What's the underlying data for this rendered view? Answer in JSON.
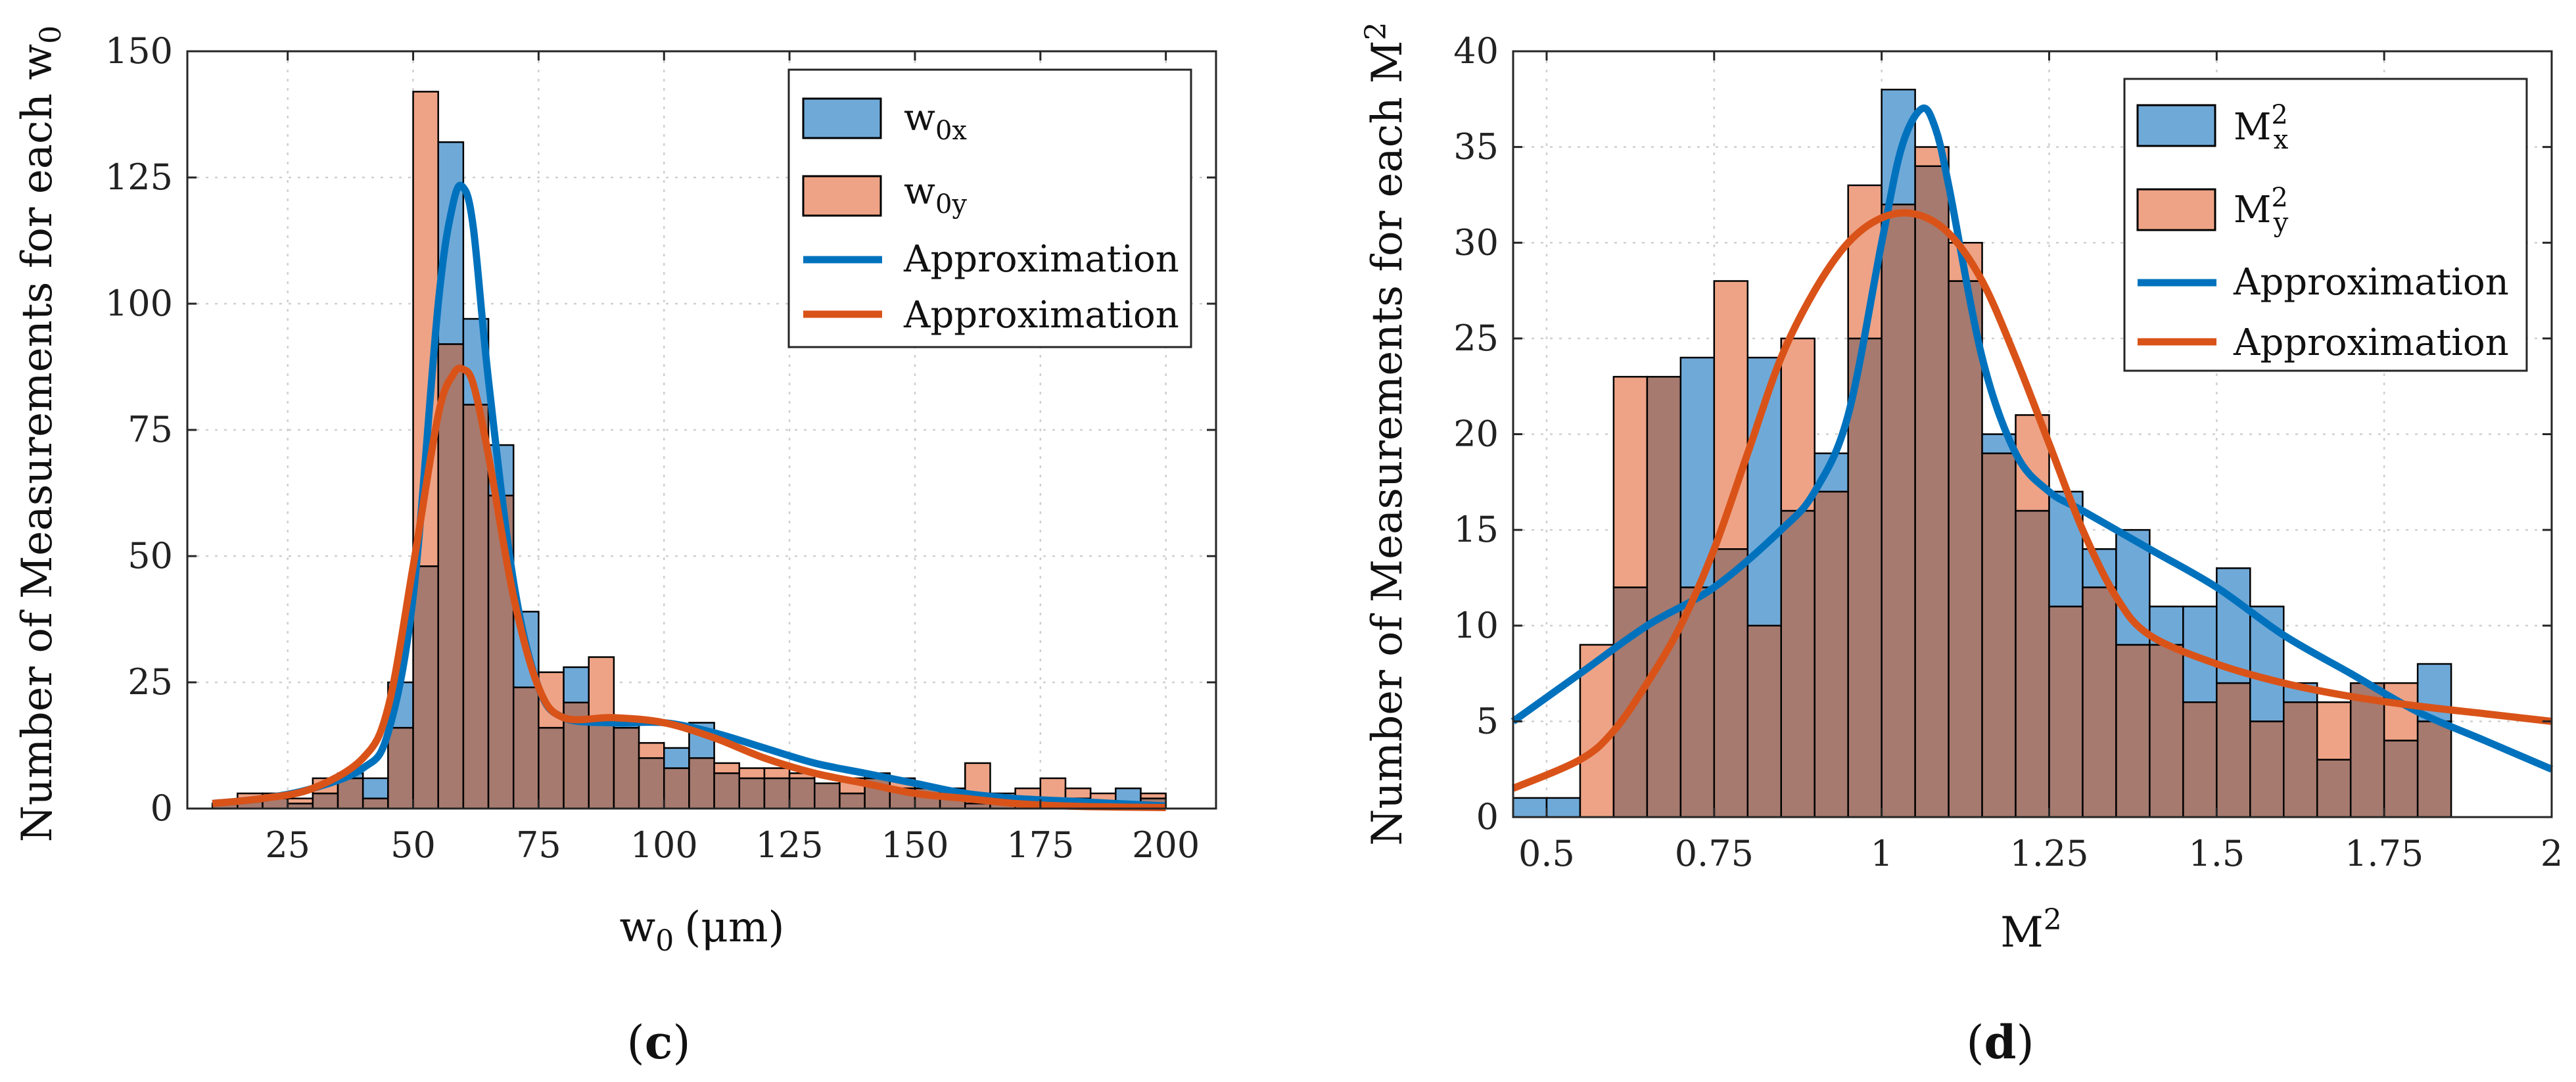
{
  "chart_data": [
    {
      "type": "histogram",
      "panel_label": "c",
      "title": "",
      "xlabel": "w0 (μm)",
      "xlabel_main": "w",
      "xlabel_sub": "0",
      "xlabel_unit": "(μm)",
      "ylabel": "Number of Measurements for each w0",
      "ylabel_main": "Number of Measurements for each w",
      "ylabel_sub": "0",
      "xlim": [
        5,
        210
      ],
      "ylim": [
        0,
        150
      ],
      "xticks": [
        25,
        50,
        75,
        100,
        125,
        150,
        175,
        200
      ],
      "yticks": [
        0,
        25,
        50,
        75,
        100,
        125,
        150
      ],
      "grid": true,
      "legend_position": "top-right",
      "bin_start": 10,
      "bin_width": 5,
      "series": [
        {
          "name": "w0x",
          "legend_main": "w",
          "legend_sub": "0x",
          "kind": "bar",
          "color": "#6FA9D8",
          "values": [
            1,
            2,
            2,
            1,
            3,
            7,
            6,
            25,
            48,
            132,
            97,
            72,
            39,
            16,
            28,
            18,
            17,
            10,
            12,
            17,
            7,
            6,
            6,
            6,
            5,
            3,
            6,
            4,
            4,
            4,
            1,
            2,
            2,
            2,
            2,
            1,
            4,
            2
          ]
        },
        {
          "name": "w0y",
          "legend_main": "w",
          "legend_sub": "0y",
          "kind": "bar",
          "color": "#EEA386",
          "values": [
            1,
            3,
            3,
            2,
            6,
            6,
            2,
            16,
            142,
            92,
            80,
            62,
            24,
            27,
            21,
            30,
            16,
            13,
            8,
            10,
            9,
            8,
            8,
            7,
            5,
            6,
            7,
            6,
            4,
            3,
            9,
            3,
            4,
            6,
            4,
            3,
            1,
            3
          ]
        },
        {
          "name": "Approximation",
          "legend_main": "Approximation",
          "kind": "line",
          "color": "#0072BD",
          "x": [
            10,
            20,
            30,
            40,
            45,
            50,
            55,
            58,
            60,
            62,
            65,
            70,
            75,
            80,
            90,
            100,
            110,
            120,
            130,
            140,
            150,
            160,
            170,
            180,
            190,
            200
          ],
          "y": [
            1,
            2,
            4,
            8,
            15,
            42,
            100,
            120,
            123,
            115,
            85,
            45,
            24,
            18,
            17,
            17,
            15,
            12,
            9,
            7,
            5,
            3,
            2,
            1.5,
            1,
            0.5
          ]
        },
        {
          "name": "Approximation",
          "legend_main": "Approximation",
          "kind": "line",
          "color": "#D95319",
          "x": [
            10,
            20,
            30,
            40,
            45,
            50,
            55,
            58,
            60,
            62,
            65,
            70,
            75,
            80,
            90,
            100,
            110,
            120,
            130,
            140,
            150,
            160,
            170,
            180,
            190,
            200
          ],
          "y": [
            1,
            2,
            4,
            10,
            20,
            48,
            78,
            86,
            87,
            84,
            70,
            42,
            24,
            18,
            18,
            17,
            14,
            10,
            7,
            5,
            3,
            2,
            1,
            0.5,
            0.3,
            0.2
          ]
        }
      ]
    },
    {
      "type": "histogram",
      "panel_label": "d",
      "title": "",
      "xlabel": "M2",
      "xlabel_main": "M",
      "xlabel_sup": "2",
      "ylabel": "Number of Measurements for each M2",
      "ylabel_main": "Number of Measurements for each M",
      "ylabel_sup": "2",
      "xlim": [
        0.45,
        2.0
      ],
      "ylim": [
        0,
        40
      ],
      "xticks": [
        0.5,
        0.75,
        1,
        1.25,
        1.5,
        1.75,
        2
      ],
      "xticklabels": [
        "0.5",
        "0.75",
        "1",
        "1.25",
        "1.5",
        "1.75",
        "2"
      ],
      "yticks": [
        0,
        5,
        10,
        15,
        20,
        25,
        30,
        35,
        40
      ],
      "grid": true,
      "legend_position": "top-right",
      "bin_start": 0.45,
      "bin_width": 0.05,
      "series": [
        {
          "name": "Mx2",
          "legend_main": "M",
          "legend_sub": "x",
          "legend_sup": "2",
          "kind": "bar",
          "color": "#6FA9D8",
          "values": [
            1,
            1,
            0,
            12,
            23,
            24,
            14,
            24,
            16,
            19,
            25,
            38,
            34,
            28,
            20,
            16,
            17,
            14,
            15,
            11,
            11,
            13,
            11,
            7,
            3,
            7,
            4,
            8
          ]
        },
        {
          "name": "My2",
          "legend_main": "M",
          "legend_sub": "y",
          "legend_sup": "2",
          "kind": "bar",
          "color": "#EEA386",
          "values": [
            0,
            0,
            9,
            23,
            23,
            12,
            28,
            10,
            25,
            17,
            33,
            32,
            35,
            30,
            19,
            21,
            11,
            12,
            9,
            9,
            6,
            7,
            5,
            6,
            6,
            7,
            7,
            5
          ]
        },
        {
          "name": "Approximation",
          "legend_main": "Approximation",
          "kind": "line",
          "color": "#0072BD",
          "x": [
            0.45,
            0.55,
            0.65,
            0.75,
            0.85,
            0.9,
            0.95,
            1.0,
            1.03,
            1.06,
            1.08,
            1.1,
            1.15,
            1.2,
            1.25,
            1.3,
            1.4,
            1.5,
            1.6,
            1.7,
            1.8,
            1.9,
            2.0
          ],
          "y": [
            5,
            7.5,
            10,
            12,
            15,
            17,
            21,
            30,
            35,
            37,
            36,
            33,
            24,
            19,
            17,
            16,
            14,
            12,
            9.5,
            7.5,
            5.5,
            4,
            2.5
          ]
        },
        {
          "name": "Approximation",
          "legend_main": "Approximation",
          "kind": "line",
          "color": "#D95319",
          "x": [
            0.45,
            0.55,
            0.6,
            0.65,
            0.7,
            0.75,
            0.8,
            0.85,
            0.9,
            0.95,
            1.0,
            1.05,
            1.1,
            1.15,
            1.2,
            1.25,
            1.3,
            1.35,
            1.4,
            1.5,
            1.6,
            1.7,
            1.8,
            1.9,
            2.0
          ],
          "y": [
            1.5,
            3,
            4.5,
            7,
            10,
            14,
            19,
            24,
            27.5,
            30,
            31.3,
            31.5,
            30.5,
            28,
            24,
            19.5,
            15,
            11.5,
            9.5,
            8,
            7,
            6.3,
            5.8,
            5.4,
            5
          ]
        }
      ]
    }
  ]
}
